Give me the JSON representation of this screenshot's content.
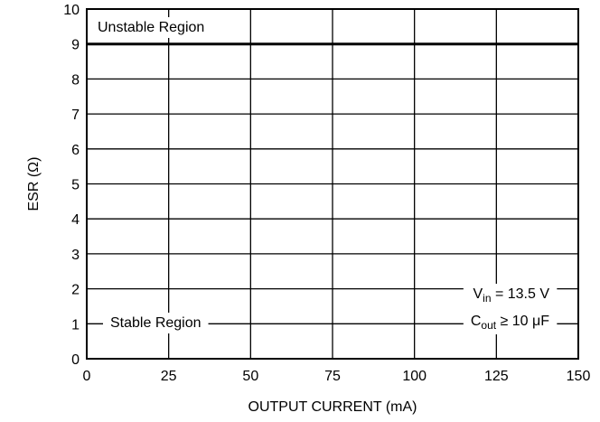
{
  "chart_data": {
    "type": "line",
    "title": "",
    "xlabel": "OUTPUT CURRENT (mA)",
    "ylabel": "ESR (Ω)",
    "xlim": [
      0,
      150
    ],
    "ylim": [
      0,
      10
    ],
    "x_ticks": [
      0,
      25,
      50,
      75,
      100,
      125,
      150
    ],
    "y_ticks": [
      0,
      1,
      2,
      3,
      4,
      5,
      6,
      7,
      8,
      9,
      10
    ],
    "grid": true,
    "legend": "none",
    "series": [
      {
        "x": [
          0,
          150
        ],
        "y": [
          9,
          9
        ],
        "color": "#000000"
      }
    ],
    "annotations": {
      "unstable_region": "Unstable Region",
      "stable_region": "Stable Region",
      "vin": {
        "symbol": "V",
        "subscript": "in",
        "rest": " = 13.5 V"
      },
      "cout": {
        "symbol": "C",
        "subscript": "out",
        "rest": " ≥ 10 μF"
      }
    }
  }
}
